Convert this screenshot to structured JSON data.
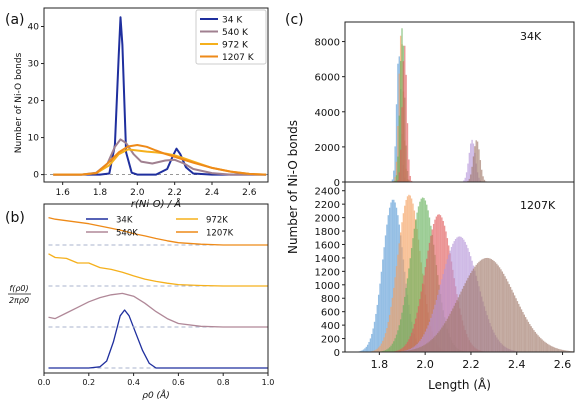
{
  "chart_data": [
    {
      "panel": "(a)",
      "type": "line",
      "xlabel": "r(Ni-O) / Å",
      "ylabel": "Number of Ni-O bonds",
      "xlim": [
        1.5,
        2.7
      ],
      "ylim": [
        -2,
        45
      ],
      "xticks": [
        1.6,
        1.8,
        2.0,
        2.2,
        2.4,
        2.6
      ],
      "yticks": [
        0,
        10,
        20,
        30,
        40
      ],
      "legend_position": "top-right",
      "series": [
        {
          "name": "34 K",
          "color": "#1f2f9e",
          "x": [
            1.55,
            1.8,
            1.85,
            1.88,
            1.9,
            1.91,
            1.92,
            1.94,
            1.97,
            2.0,
            2.1,
            2.16,
            2.19,
            2.21,
            2.23,
            2.26,
            2.3,
            2.4,
            2.69
          ],
          "y": [
            0,
            0,
            0.3,
            8,
            32,
            42.5,
            35,
            6,
            0.5,
            0,
            0,
            1.5,
            5,
            7,
            5.5,
            2,
            0.3,
            0,
            0
          ]
        },
        {
          "name": "540 K",
          "color": "#a08090",
          "x": [
            1.55,
            1.7,
            1.78,
            1.84,
            1.88,
            1.91,
            1.94,
            1.98,
            2.02,
            2.08,
            2.15,
            2.2,
            2.25,
            2.3,
            2.4,
            2.5,
            2.69
          ],
          "y": [
            0,
            0,
            0.5,
            3,
            7.5,
            9.5,
            8.5,
            5.5,
            3.5,
            3,
            3.8,
            4,
            3,
            1.5,
            0.4,
            0,
            0
          ]
        },
        {
          "name": "972 K",
          "color": "#f5b01c",
          "x": [
            1.55,
            1.7,
            1.78,
            1.85,
            1.9,
            1.95,
            2.0,
            2.05,
            2.1,
            2.15,
            2.2,
            2.25,
            2.3,
            2.4,
            2.5,
            2.6,
            2.69
          ],
          "y": [
            0,
            0,
            0.4,
            2.5,
            5.5,
            6.8,
            6.5,
            6.2,
            6,
            5.7,
            5.2,
            4.4,
            3.5,
            1.8,
            0.8,
            0.2,
            0
          ]
        },
        {
          "name": "1207 K",
          "color": "#ee8a18",
          "x": [
            1.55,
            1.7,
            1.78,
            1.84,
            1.9,
            1.95,
            2.0,
            2.05,
            2.1,
            2.15,
            2.2,
            2.25,
            2.3,
            2.4,
            2.5,
            2.6,
            2.69
          ],
          "y": [
            0,
            0,
            0.4,
            3,
            6,
            7.6,
            8,
            7.5,
            6.5,
            5.6,
            4.8,
            4,
            3.2,
            1.8,
            0.8,
            0.2,
            0
          ]
        }
      ]
    },
    {
      "panel": "(b)",
      "type": "line",
      "xlabel": "ρ0 (Å)",
      "ylabel_num": "f(ρ0)",
      "ylabel_den": "2πρ0",
      "xlim": [
        0.0,
        1.0
      ],
      "xticks": [
        "0.0",
        "0.2",
        "0.4",
        "0.6",
        "0.8",
        "1.0"
      ],
      "legend_position": "top",
      "series": [
        {
          "name": "34K",
          "color": "#1f2f9e",
          "baseline": 0.0,
          "x": [
            0.02,
            0.2,
            0.25,
            0.28,
            0.31,
            0.34,
            0.36,
            0.38,
            0.41,
            0.44,
            0.47,
            0.5,
            0.6,
            0.8,
            1.0
          ],
          "y": [
            0,
            0,
            0.02,
            0.12,
            0.45,
            0.9,
            1.0,
            0.9,
            0.6,
            0.3,
            0.08,
            0,
            0,
            0,
            0
          ]
        },
        {
          "name": "540K",
          "color": "#b08898",
          "baseline": 1.0,
          "x": [
            0.02,
            0.05,
            0.1,
            0.15,
            0.2,
            0.25,
            0.3,
            0.35,
            0.4,
            0.45,
            0.5,
            0.55,
            0.6,
            0.7,
            0.8,
            1.0
          ],
          "y": [
            0.14,
            0.12,
            0.2,
            0.28,
            0.36,
            0.42,
            0.46,
            0.48,
            0.44,
            0.34,
            0.22,
            0.12,
            0.05,
            0.01,
            0,
            0
          ]
        },
        {
          "name": "972K",
          "color": "#f5b01c",
          "baseline": 2.0,
          "x": [
            0.02,
            0.05,
            0.1,
            0.15,
            0.2,
            0.25,
            0.3,
            0.35,
            0.4,
            0.45,
            0.5,
            0.55,
            0.6,
            0.7,
            0.8,
            1.0
          ],
          "y": [
            0.7,
            0.62,
            0.6,
            0.5,
            0.5,
            0.4,
            0.36,
            0.3,
            0.22,
            0.15,
            0.1,
            0.06,
            0.03,
            0.01,
            0,
            0
          ]
        },
        {
          "name": "1207K",
          "color": "#ee8a18",
          "baseline": 3.0,
          "x": [
            0.02,
            0.05,
            0.1,
            0.15,
            0.2,
            0.25,
            0.3,
            0.35,
            0.4,
            0.45,
            0.5,
            0.55,
            0.6,
            0.7,
            0.8,
            1.0
          ],
          "y": [
            0.72,
            0.68,
            0.64,
            0.6,
            0.56,
            0.5,
            0.44,
            0.38,
            0.3,
            0.24,
            0.17,
            0.11,
            0.06,
            0.02,
            0,
            0
          ]
        }
      ]
    },
    {
      "panel": "(c)",
      "type": "bar",
      "subtype": "histogram",
      "ylabel": "Number of Ni-O bonds",
      "xlabel": "Length (Å)",
      "xlim": [
        1.65,
        2.65
      ],
      "xticks": [
        "1.8",
        "2.0",
        "2.2",
        "2.4",
        "2.6"
      ],
      "subplots": [
        {
          "label": "34K",
          "ylim": [
            0,
            9000
          ],
          "yticks": [
            0,
            2000,
            4000,
            6000,
            8000
          ],
          "series": [
            {
              "color": "#5b9bd5",
              "mean": 1.885,
              "sd": 0.01,
              "peak": 7300
            },
            {
              "color": "#f4a060",
              "mean": 1.895,
              "sd": 0.01,
              "peak": 8500
            },
            {
              "color": "#66b05a",
              "mean": 1.9,
              "sd": 0.01,
              "peak": 8800
            },
            {
              "color": "#e05a5a",
              "mean": 1.91,
              "sd": 0.01,
              "peak": 7800
            },
            {
              "color": "#b595d8",
              "mean": 2.205,
              "sd": 0.014,
              "peak": 2400
            },
            {
              "color": "#a07868",
              "mean": 2.225,
              "sd": 0.014,
              "peak": 2400
            }
          ]
        },
        {
          "label": "1207K",
          "ylim": [
            0,
            2500
          ],
          "yticks": [
            0,
            200,
            400,
            600,
            800,
            1000,
            1200,
            1400,
            1600,
            1800,
            2000,
            2200,
            2400
          ],
          "series": [
            {
              "color": "#5b9bd5",
              "mean": 1.86,
              "sd": 0.045,
              "peak": 2270
            },
            {
              "color": "#f4a060",
              "mean": 1.93,
              "sd": 0.05,
              "peak": 2340
            },
            {
              "color": "#66b05a",
              "mean": 1.99,
              "sd": 0.055,
              "peak": 2300
            },
            {
              "color": "#e05a5a",
              "mean": 2.06,
              "sd": 0.06,
              "peak": 2050
            },
            {
              "color": "#b595d8",
              "mean": 2.15,
              "sd": 0.08,
              "peak": 1720
            },
            {
              "color": "#a07868",
              "mean": 2.27,
              "sd": 0.12,
              "peak": 1400
            }
          ]
        }
      ]
    }
  ]
}
